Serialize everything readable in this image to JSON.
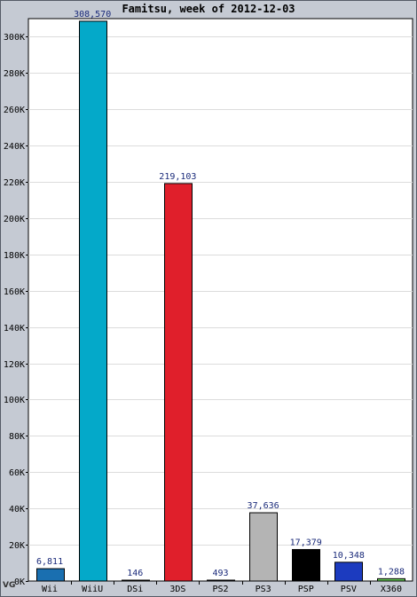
{
  "chart_data": {
    "type": "bar",
    "title": "Famitsu, week of 2012-12-03",
    "xlabel": "",
    "ylabel": "",
    "categories": [
      "Wii",
      "WiiU",
      "DSi",
      "3DS",
      "PS2",
      "PS3",
      "PSP",
      "PSV",
      "X360"
    ],
    "values": [
      6811,
      308570,
      146,
      219103,
      493,
      37636,
      17379,
      10348,
      1288
    ],
    "value_labels": [
      "6,811",
      "308,570",
      "146",
      "219,103",
      "493",
      "37,636",
      "17,379",
      "10,348",
      "1,288"
    ],
    "colors": [
      "#1a6fb0",
      "#04a9c9",
      "#6a7fa6",
      "#e01f2b",
      "#2a2aa0",
      "#b4b4b4",
      "#000000",
      "#1c3bbf",
      "#66cc55"
    ],
    "ylim": [
      0,
      310000
    ],
    "yticks": [
      0,
      20000,
      40000,
      60000,
      80000,
      100000,
      120000,
      140000,
      160000,
      180000,
      200000,
      220000,
      240000,
      260000,
      280000,
      300000
    ],
    "ytick_labels": [
      "0K",
      "20K",
      "40K",
      "60K",
      "80K",
      "100K",
      "120K",
      "140K",
      "160K",
      "180K",
      "200K",
      "220K",
      "240K",
      "260K",
      "280K",
      "300K"
    ],
    "grid": true,
    "legend": "none"
  },
  "watermark": "VG"
}
